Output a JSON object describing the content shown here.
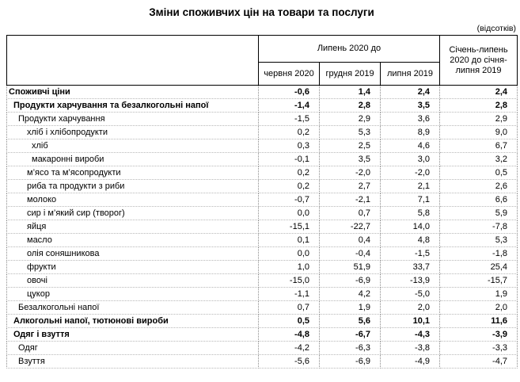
{
  "title": "Зміни споживчих цін на товари та послуги",
  "unit_note": "(відсотків)",
  "table": {
    "col_group_header": "Липень 2020 до",
    "col_headers": [
      "червня 2020",
      "грудня 2019",
      "липня 2019"
    ],
    "last_col_header": "Січень-липень 2020 до січня-липня 2019",
    "rows": [
      {
        "label": "Споживчі ціни",
        "indent": 0,
        "bold": true,
        "values": [
          "-0,6",
          "1,4",
          "2,4",
          "2,4"
        ]
      },
      {
        "label": "Продукти харчування та безалкогольні напої",
        "indent": 1,
        "bold": true,
        "values": [
          "-1,4",
          "2,8",
          "3,5",
          "2,8"
        ]
      },
      {
        "label": "Продукти харчування",
        "indent": 2,
        "bold": false,
        "values": [
          "-1,5",
          "2,9",
          "3,6",
          "2,9"
        ]
      },
      {
        "label": "хліб і хлібопродукти",
        "indent": 3,
        "bold": false,
        "values": [
          "0,2",
          "5,3",
          "8,9",
          "9,0"
        ]
      },
      {
        "label": "хліб",
        "indent": 4,
        "bold": false,
        "values": [
          "0,3",
          "2,5",
          "4,6",
          "6,7"
        ]
      },
      {
        "label": "макаронні вироби",
        "indent": 4,
        "bold": false,
        "values": [
          "-0,1",
          "3,5",
          "3,0",
          "3,2"
        ]
      },
      {
        "label": "м’ясо та м’ясопродукти",
        "indent": 3,
        "bold": false,
        "values": [
          "0,2",
          "-2,0",
          "-2,0",
          "0,5"
        ]
      },
      {
        "label": "риба та продукти з риби",
        "indent": 3,
        "bold": false,
        "values": [
          "0,2",
          "2,7",
          "2,1",
          "2,6"
        ]
      },
      {
        "label": "молоко",
        "indent": 3,
        "bold": false,
        "values": [
          "-0,7",
          "-2,1",
          "7,1",
          "6,6"
        ]
      },
      {
        "label": "сир і м’який сир (творог)",
        "indent": 3,
        "bold": false,
        "values": [
          "0,0",
          "0,7",
          "5,8",
          "5,9"
        ]
      },
      {
        "label": "яйця",
        "indent": 3,
        "bold": false,
        "values": [
          "-15,1",
          "-22,7",
          "14,0",
          "-7,8"
        ]
      },
      {
        "label": "масло",
        "indent": 3,
        "bold": false,
        "values": [
          "0,1",
          "0,4",
          "4,8",
          "5,3"
        ]
      },
      {
        "label": "олія соняшникова",
        "indent": 3,
        "bold": false,
        "values": [
          "0,0",
          "-0,4",
          "-1,5",
          "-1,8"
        ]
      },
      {
        "label": "фрукти",
        "indent": 3,
        "bold": false,
        "values": [
          "1,0",
          "51,9",
          "33,7",
          "25,4"
        ]
      },
      {
        "label": "овочі",
        "indent": 3,
        "bold": false,
        "values": [
          "-15,0",
          "-6,9",
          "-13,9",
          "-15,7"
        ]
      },
      {
        "label": "цукор",
        "indent": 3,
        "bold": false,
        "values": [
          "-1,1",
          "4,2",
          "-5,0",
          "1,9"
        ]
      },
      {
        "label": "Безалкогольні напої",
        "indent": 2,
        "bold": false,
        "values": [
          "0,7",
          "1,9",
          "2,0",
          "2,0"
        ]
      },
      {
        "label": "Алкогольні напої, тютюнові вироби",
        "indent": 1,
        "bold": true,
        "values": [
          "0,5",
          "5,6",
          "10,1",
          "11,6"
        ]
      },
      {
        "label": "Одяг і взуття",
        "indent": 1,
        "bold": true,
        "values": [
          "-4,8",
          "-6,7",
          "-4,3",
          "-3,9"
        ]
      },
      {
        "label": "Одяг",
        "indent": 2,
        "bold": false,
        "values": [
          "-4,2",
          "-6,3",
          "-3,8",
          "-3,3"
        ]
      },
      {
        "label": "Взуття",
        "indent": 2,
        "bold": false,
        "values": [
          "-5,6",
          "-6,9",
          "-4,9",
          "-4,7"
        ]
      }
    ]
  }
}
